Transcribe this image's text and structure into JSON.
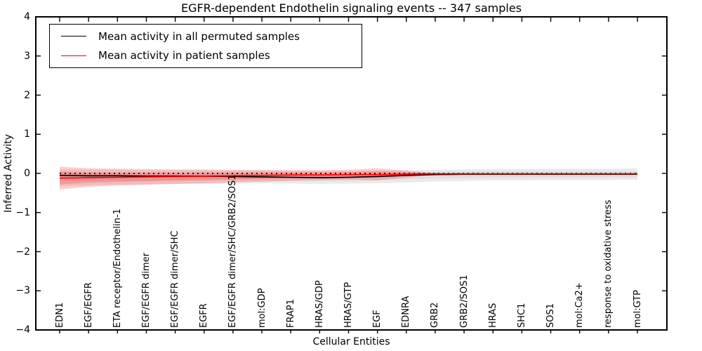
{
  "figure": {
    "background": "#ffffff",
    "axis_color": "#000000"
  },
  "chart_data": {
    "type": "line",
    "title": "EGFR-dependent Endothelin signaling events -- 347 samples",
    "xlabel": "Cellular Entities",
    "ylabel": "Inferred Activity",
    "ylim": [
      -4,
      4
    ],
    "yticks": [
      4,
      3,
      2,
      1,
      0,
      -1,
      -2,
      -3,
      -4
    ],
    "ytick_labels": [
      "4",
      "3",
      "2",
      "1",
      "0",
      "−1",
      "−2",
      "−3",
      "−4"
    ],
    "grid": false,
    "legend_position": "upper left",
    "categories": [
      "EDN1",
      "EGF/EGFR",
      "ETA receptor/Endothelin-1",
      "EGF/EGFR dimer",
      "EGF/EGFR dimer/SHC",
      "EGFR",
      "EGF/EGFR dimer/SHC/GRB2/SOS1",
      "mol:GDP",
      "FRAP1",
      "HRAS/GDP",
      "HRAS/GTP",
      "EGF",
      "EDNRA",
      "GRB2",
      "GRB2/SOS1",
      "HRAS",
      "SHC1",
      "SOS1",
      "mol:Ca2+",
      "response to oxidative stress",
      "mol:GTP"
    ],
    "zero_line": {
      "value": 0,
      "style": "dotted",
      "color": "#000000"
    },
    "series": [
      {
        "name": "Mean activity in all permuted samples",
        "color": "#000000",
        "band_color": "#808080",
        "values": [
          -0.05,
          -0.06,
          -0.06,
          -0.07,
          -0.07,
          -0.07,
          -0.08,
          -0.09,
          -0.1,
          -0.11,
          -0.1,
          -0.08,
          -0.05,
          -0.03,
          -0.02,
          -0.02,
          -0.02,
          -0.02,
          -0.02,
          -0.02,
          -0.02
        ],
        "band_upper": [
          0.1,
          0.09,
          0.09,
          0.08,
          0.08,
          0.08,
          0.07,
          0.07,
          0.07,
          0.06,
          0.06,
          0.07,
          0.08,
          0.09,
          0.1,
          0.11,
          0.11,
          0.12,
          0.12,
          0.12,
          0.13
        ],
        "band_lower": [
          -0.32,
          -0.3,
          -0.29,
          -0.28,
          -0.27,
          -0.27,
          -0.26,
          -0.25,
          -0.26,
          -0.27,
          -0.26,
          -0.25,
          -0.23,
          -0.21,
          -0.19,
          -0.18,
          -0.18,
          -0.17,
          -0.17,
          -0.17,
          -0.16
        ]
      },
      {
        "name": "Mean activity in patient samples",
        "color": "#ff0000",
        "band_color": "#ff3333",
        "values": [
          -0.12,
          -0.11,
          -0.1,
          -0.09,
          -0.08,
          -0.07,
          -0.06,
          -0.05,
          -0.04,
          -0.04,
          -0.03,
          -0.03,
          -0.02,
          -0.01,
          -0.01,
          -0.01,
          -0.01,
          -0.01,
          -0.01,
          -0.01,
          -0.01
        ],
        "band_upper": [
          0.17,
          0.13,
          0.12,
          0.11,
          0.1,
          0.1,
          0.09,
          0.09,
          0.08,
          0.08,
          0.09,
          0.13,
          0.07,
          0.01,
          0.0,
          0.0,
          0.0,
          0.0,
          0.0,
          0.0,
          0.0
        ],
        "band_lower": [
          -0.41,
          -0.34,
          -0.31,
          -0.29,
          -0.27,
          -0.25,
          -0.23,
          -0.21,
          -0.19,
          -0.17,
          -0.16,
          -0.18,
          -0.11,
          -0.03,
          -0.02,
          -0.02,
          -0.02,
          -0.02,
          -0.02,
          -0.02,
          -0.02
        ]
      }
    ]
  }
}
